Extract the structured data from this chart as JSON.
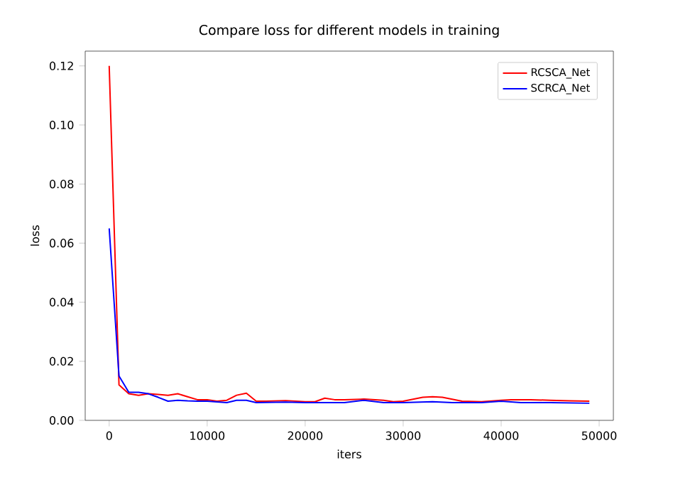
{
  "chart_data": {
    "type": "line",
    "title": "Compare loss for different models in training",
    "xlabel": "iters",
    "ylabel": "loss",
    "xlim": [
      -2450,
      51450
    ],
    "xticks": [
      0,
      10000,
      20000,
      30000,
      40000,
      50000
    ],
    "ylim": [
      0,
      0.125
    ],
    "yticks": [
      {
        "value": 0,
        "label": "0.00"
      },
      {
        "value": 0.02,
        "label": "0.02"
      },
      {
        "value": 0.04,
        "label": "0.04"
      },
      {
        "value": 0.06,
        "label": "0.06"
      },
      {
        "value": 0.08,
        "label": "0.08"
      },
      {
        "value": 0.1,
        "label": "0.10"
      },
      {
        "value": 0.12,
        "label": "0.12"
      }
    ],
    "legend": "top right",
    "grid": false,
    "marker": "none",
    "line_style": "solid",
    "series": [
      {
        "name": "RCSCA_Net",
        "color": "#ff0000",
        "x": [
          0,
          1000,
          2000,
          3000,
          4000,
          5000,
          6000,
          7000,
          8000,
          9000,
          10000,
          11000,
          12000,
          13000,
          14000,
          15000,
          16000,
          18000,
          20000,
          21000,
          22000,
          23000,
          24000,
          26000,
          28000,
          29000,
          30000,
          32000,
          33000,
          34000,
          36000,
          38000,
          40000,
          41000,
          43000,
          45000,
          47000,
          49000
        ],
        "values": [
          0.12,
          0.012,
          0.009,
          0.0085,
          0.009,
          0.0088,
          0.0085,
          0.009,
          0.008,
          0.007,
          0.007,
          0.0065,
          0.0068,
          0.0085,
          0.0092,
          0.0065,
          0.0065,
          0.0067,
          0.0063,
          0.0063,
          0.0075,
          0.007,
          0.007,
          0.0072,
          0.0068,
          0.0063,
          0.0065,
          0.0078,
          0.008,
          0.0078,
          0.0065,
          0.0063,
          0.0068,
          0.007,
          0.007,
          0.0068,
          0.0066,
          0.0065
        ]
      },
      {
        "name": "SCRCA_Net",
        "color": "#0000ff",
        "x": [
          0,
          1000,
          2000,
          3000,
          4000,
          5000,
          6000,
          7000,
          8000,
          9000,
          10000,
          12000,
          13000,
          14000,
          15000,
          18000,
          20000,
          24000,
          26000,
          28000,
          30000,
          33000,
          35000,
          38000,
          40000,
          42000,
          45000,
          49000
        ],
        "values": [
          0.065,
          0.015,
          0.0095,
          0.0095,
          0.009,
          0.0078,
          0.0065,
          0.0068,
          0.0066,
          0.0065,
          0.0065,
          0.006,
          0.0068,
          0.0068,
          0.006,
          0.0062,
          0.006,
          0.006,
          0.0068,
          0.006,
          0.006,
          0.0063,
          0.006,
          0.006,
          0.0065,
          0.006,
          0.006,
          0.0058
        ]
      }
    ]
  }
}
